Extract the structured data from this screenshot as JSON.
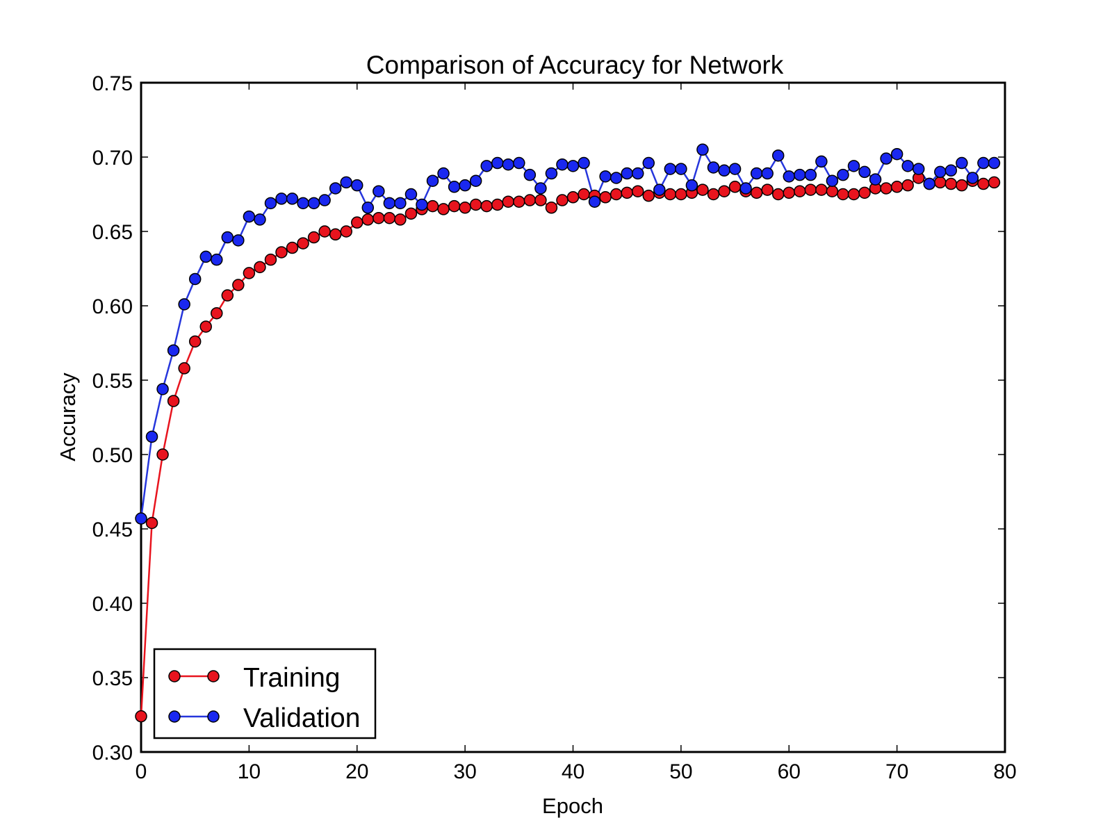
{
  "chart_data": {
    "type": "line",
    "title": "Comparison of Accuracy for Network",
    "xlabel": "Epoch",
    "ylabel": "Accuracy",
    "xlim": [
      0,
      80
    ],
    "ylim": [
      0.3,
      0.75
    ],
    "xticks": [
      0,
      10,
      20,
      30,
      40,
      50,
      60,
      70,
      80
    ],
    "xtick_labels": [
      "0",
      "10",
      "20",
      "30",
      "40",
      "50",
      "60",
      "70",
      "80"
    ],
    "yticks": [
      0.3,
      0.35,
      0.4,
      0.45,
      0.5,
      0.55,
      0.6,
      0.65,
      0.7,
      0.75
    ],
    "ytick_labels": [
      "0.30",
      "0.35",
      "0.40",
      "0.45",
      "0.50",
      "0.55",
      "0.60",
      "0.65",
      "0.70",
      "0.75"
    ],
    "grid": false,
    "legend_position": "bottom-left",
    "x": [
      0,
      1,
      2,
      3,
      4,
      5,
      6,
      7,
      8,
      9,
      10,
      11,
      12,
      13,
      14,
      15,
      16,
      17,
      18,
      19,
      20,
      21,
      22,
      23,
      24,
      25,
      26,
      27,
      28,
      29,
      30,
      31,
      32,
      33,
      34,
      35,
      36,
      37,
      38,
      39,
      40,
      41,
      42,
      43,
      44,
      45,
      46,
      47,
      48,
      49,
      50,
      51,
      52,
      53,
      54,
      55,
      56,
      57,
      58,
      59,
      60,
      61,
      62,
      63,
      64,
      65,
      66,
      67,
      68,
      69,
      70,
      71,
      72,
      73,
      74,
      75,
      76,
      77,
      78,
      79
    ],
    "series": [
      {
        "name": "Training",
        "color": "#e8141e",
        "line_color": "#e8141e",
        "values": [
          0.324,
          0.454,
          0.5,
          0.536,
          0.558,
          0.576,
          0.586,
          0.595,
          0.607,
          0.614,
          0.622,
          0.626,
          0.631,
          0.636,
          0.639,
          0.642,
          0.646,
          0.65,
          0.648,
          0.65,
          0.656,
          0.658,
          0.659,
          0.659,
          0.658,
          0.662,
          0.665,
          0.667,
          0.665,
          0.667,
          0.666,
          0.668,
          0.667,
          0.668,
          0.67,
          0.67,
          0.671,
          0.671,
          0.666,
          0.671,
          0.673,
          0.675,
          0.674,
          0.673,
          0.675,
          0.676,
          0.677,
          0.674,
          0.676,
          0.675,
          0.675,
          0.676,
          0.678,
          0.675,
          0.677,
          0.68,
          0.677,
          0.676,
          0.678,
          0.675,
          0.676,
          0.677,
          0.678,
          0.678,
          0.677,
          0.675,
          0.675,
          0.676,
          0.679,
          0.679,
          0.68,
          0.681,
          0.686,
          0.682,
          0.683,
          0.682,
          0.681,
          0.684,
          0.682,
          0.683
        ]
      },
      {
        "name": "Validation",
        "color": "#1a28f0",
        "line_color": "#2636dc",
        "values": [
          0.457,
          0.512,
          0.544,
          0.57,
          0.601,
          0.618,
          0.633,
          0.631,
          0.646,
          0.644,
          0.66,
          0.658,
          0.669,
          0.672,
          0.672,
          0.669,
          0.669,
          0.671,
          0.679,
          0.683,
          0.681,
          0.666,
          0.677,
          0.669,
          0.669,
          0.675,
          0.668,
          0.684,
          0.689,
          0.68,
          0.681,
          0.684,
          0.694,
          0.696,
          0.695,
          0.696,
          0.688,
          0.679,
          0.689,
          0.695,
          0.694,
          0.696,
          0.67,
          0.687,
          0.686,
          0.689,
          0.689,
          0.696,
          0.678,
          0.692,
          0.692,
          0.681,
          0.705,
          0.693,
          0.691,
          0.692,
          0.679,
          0.689,
          0.689,
          0.701,
          0.687,
          0.688,
          0.688,
          0.697,
          0.684,
          0.688,
          0.694,
          0.69,
          0.685,
          0.699,
          0.702,
          0.694,
          0.692,
          0.682,
          0.69,
          0.691,
          0.696,
          0.686,
          0.696,
          0.696
        ]
      }
    ]
  }
}
